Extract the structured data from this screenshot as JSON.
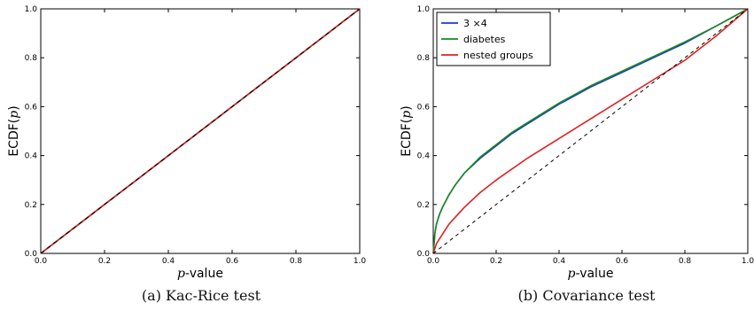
{
  "chart_data": [
    {
      "type": "line",
      "caption": "(a) Kac-Rice test",
      "xlabel_italic": "p",
      "xlabel_rest": "-value",
      "ylabel_prefix": "ECDF(",
      "ylabel_italic": "p",
      "ylabel_suffix": ")",
      "xlim": [
        0,
        1
      ],
      "ylim": [
        0,
        1
      ],
      "xticks": [
        "0.0",
        "0.2",
        "0.4",
        "0.6",
        "0.8",
        "1.0"
      ],
      "yticks": [
        "0.0",
        "0.2",
        "0.4",
        "0.6",
        "0.8",
        "1.0"
      ],
      "legend": null,
      "series": [
        {
          "color": "#1a3ad6",
          "width": 1.6,
          "x": [
            0,
            0.1,
            0.2,
            0.3,
            0.4,
            0.5,
            0.6,
            0.7,
            0.8,
            0.9,
            1.0
          ],
          "y": [
            0,
            0.1,
            0.2,
            0.3,
            0.4,
            0.5,
            0.6,
            0.7,
            0.8,
            0.9,
            1.0
          ]
        },
        {
          "color": "#1a8a1a",
          "width": 1.6,
          "x": [
            0,
            0.1,
            0.2,
            0.3,
            0.4,
            0.5,
            0.6,
            0.7,
            0.8,
            0.9,
            1.0
          ],
          "y": [
            0,
            0.1,
            0.2,
            0.3,
            0.4,
            0.5,
            0.6,
            0.7,
            0.8,
            0.9,
            1.0
          ]
        },
        {
          "color": "#e02020",
          "width": 1.6,
          "x": [
            0,
            0.05,
            0.1,
            0.2,
            0.3,
            0.4,
            0.5,
            0.6,
            0.7,
            0.8,
            0.9,
            1.0
          ],
          "y": [
            0,
            0.05,
            0.1,
            0.2,
            0.3,
            0.4,
            0.5,
            0.6,
            0.7,
            0.8,
            0.9,
            1.0
          ]
        }
      ],
      "reference": {
        "x": [
          0,
          1
        ],
        "y": [
          0,
          1
        ],
        "color": "#000000",
        "dash": "5,4"
      }
    },
    {
      "type": "line",
      "caption": "(b) Covariance test",
      "xlabel_italic": "p",
      "xlabel_rest": "-value",
      "ylabel_prefix": "ECDF(",
      "ylabel_italic": "p",
      "ylabel_suffix": ")",
      "xlim": [
        0,
        1
      ],
      "ylim": [
        0,
        1
      ],
      "xticks": [
        "0.0",
        "0.2",
        "0.4",
        "0.6",
        "0.8",
        "1.0"
      ],
      "yticks": [
        "0.0",
        "0.2",
        "0.4",
        "0.6",
        "0.8",
        "1.0"
      ],
      "legend": {
        "location": "top-left"
      },
      "series": [
        {
          "name": "3 ×4",
          "color": "#1a3ad6",
          "width": 1.6,
          "x": [
            0,
            0.005,
            0.01,
            0.02,
            0.03,
            0.05,
            0.07,
            0.1,
            0.15,
            0.2,
            0.25,
            0.3,
            0.4,
            0.5,
            0.6,
            0.7,
            0.8,
            0.9,
            1.0
          ],
          "y": [
            0,
            0.08,
            0.12,
            0.16,
            0.19,
            0.24,
            0.28,
            0.33,
            0.39,
            0.44,
            0.49,
            0.53,
            0.61,
            0.68,
            0.74,
            0.8,
            0.86,
            0.93,
            1.0
          ]
        },
        {
          "name": "diabetes",
          "color": "#1a8a1a",
          "width": 1.6,
          "x": [
            0,
            0.005,
            0.01,
            0.02,
            0.03,
            0.05,
            0.07,
            0.1,
            0.15,
            0.2,
            0.25,
            0.3,
            0.4,
            0.5,
            0.6,
            0.7,
            0.8,
            0.9,
            1.0
          ],
          "y": [
            0,
            0.08,
            0.12,
            0.16,
            0.19,
            0.24,
            0.28,
            0.33,
            0.395,
            0.445,
            0.495,
            0.535,
            0.615,
            0.685,
            0.745,
            0.805,
            0.865,
            0.93,
            1.0
          ]
        },
        {
          "name": "nested groups",
          "color": "#e02020",
          "width": 1.6,
          "x": [
            0,
            0.01,
            0.02,
            0.05,
            0.1,
            0.15,
            0.2,
            0.3,
            0.4,
            0.5,
            0.6,
            0.7,
            0.8,
            0.9,
            1.0
          ],
          "y": [
            0,
            0.04,
            0.06,
            0.12,
            0.19,
            0.25,
            0.3,
            0.39,
            0.47,
            0.55,
            0.63,
            0.71,
            0.79,
            0.89,
            1.0
          ]
        }
      ],
      "reference": {
        "x": [
          0,
          1
        ],
        "y": [
          0,
          1
        ],
        "color": "#000000",
        "dash": "4,4"
      }
    }
  ]
}
